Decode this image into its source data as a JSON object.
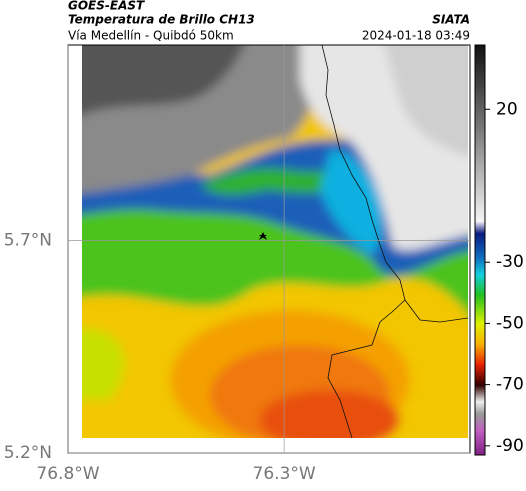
{
  "header": {
    "satellite": "GOES-EAST",
    "product": "Temperatura de Brillo CH13",
    "source": "SIATA",
    "route": "Vía Medellín - Quibdó 50km",
    "datetime": "2024-01-18 03:49"
  },
  "map": {
    "xlim": [
      -76.8,
      -75.87
    ],
    "ylim": [
      5.2,
      6.16
    ],
    "xticks": [
      {
        "value": -76.8,
        "label": "76.8°W"
      },
      {
        "value": -76.3,
        "label": "76.3°W"
      }
    ],
    "yticks": [
      {
        "value": 5.7,
        "label": "5.7°N"
      },
      {
        "value": 5.2,
        "label": "5.2°N"
      }
    ]
  },
  "colorbar": {
    "lim": [
      -93,
      41
    ],
    "ticks": [
      20,
      -30,
      -50,
      -70,
      -90
    ]
  }
}
